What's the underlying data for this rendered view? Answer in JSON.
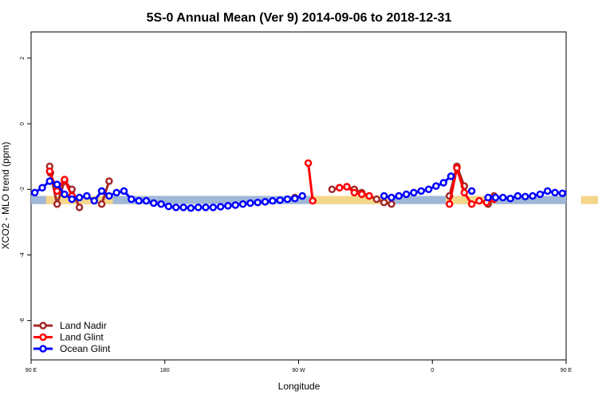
{
  "chart_data": {
    "type": "line",
    "title": "5S-0 Annual Mean (Ver 9)   2014-09-06 to 2018-12-31",
    "xlabel": "Longitude",
    "ylabel": "XCO2 - MLO trend (ppm)",
    "xlim": [
      90,
      450
    ],
    "ylim": [
      -7.2,
      2.8
    ],
    "x_ticks": [
      {
        "value": 90,
        "label": "90 E"
      },
      {
        "value": 180,
        "label": "180"
      },
      {
        "value": 270,
        "label": "90 W"
      },
      {
        "value": 360,
        "label": "0"
      },
      {
        "value": 450,
        "label": "90 E"
      },
      {
        "value": 540,
        "label": "180"
      }
    ],
    "y_ticks": [
      -6,
      -4,
      -2,
      0,
      2
    ],
    "grid": false,
    "legend_position": "bottom-left",
    "band": {
      "ymin": -2.45,
      "ymax": -2.2,
      "color": "#9fb7d6"
    },
    "yellow_segments": [
      {
        "x": [
          100,
          145
        ],
        "ymin": -2.45,
        "ymax": -2.2
      },
      {
        "x": [
          280,
          332
        ],
        "ymin": -2.45,
        "ymax": -2.2
      },
      {
        "x": [
          369,
          401
        ],
        "ymin": -2.45,
        "ymax": -2.2
      },
      {
        "x": [
          460,
          505
        ],
        "ymin": -2.45,
        "ymax": -2.2
      }
    ],
    "yellow_color": "#f5d78a",
    "series": [
      {
        "name": "Land Nadir",
        "color": "#a52a2a",
        "segments": [
          {
            "x": [
              102.5,
              103.0,
              107.5,
              112.5,
              117.5,
              122.5
            ],
            "y": [
              -1.3,
              -1.5,
              -2.45,
              -1.75,
              -2.0,
              -2.55
            ]
          },
          {
            "x": [
              137.5,
              142.5
            ],
            "y": [
              -2.45,
              -1.75
            ]
          },
          {
            "x": [
              267.5
            ],
            "y": [
              -2.25
            ]
          },
          {
            "x": [
              292.5,
              297.5,
              302.5,
              307.5,
              312.5,
              317.5,
              322.5,
              327.5,
              332.5
            ],
            "y": [
              -2.0,
              -1.95,
              -1.92,
              -2.0,
              -2.1,
              -2.2,
              -2.3,
              -2.4,
              -2.45
            ]
          },
          {
            "x": [
              371.5,
              376.5,
              381.5
            ],
            "y": [
              -2.2,
              -1.3,
              -1.9
            ]
          },
          {
            "x": [
              397.5,
              401.5
            ],
            "y": [
              -2.45,
              -2.2
            ]
          },
          {
            "x": [
              462.5,
              463.0,
              467.5,
              472.5,
              477.5,
              482.5
            ],
            "y": [
              -1.3,
              -1.5,
              -2.45,
              -1.75,
              -2.0,
              -2.55
            ]
          },
          {
            "x": [
              497.5,
              502.5
            ],
            "y": [
              -2.45,
              -1.75
            ]
          }
        ]
      },
      {
        "name": "Land Glint",
        "color": "#ff0000",
        "segments": [
          {
            "x": [
              102.5,
              107.5,
              112.5,
              117.5
            ],
            "y": [
              -1.45,
              -2.05,
              -1.7,
              -2.2
            ]
          },
          {
            "x": [
              276.5,
              279.5
            ],
            "y": [
              -1.2,
              -2.35
            ]
          },
          {
            "x": [
              297.5,
              302.5,
              307.5,
              312.5,
              317.5
            ],
            "y": [
              -1.95,
              -1.92,
              -2.1,
              -2.15,
              -2.2
            ]
          },
          {
            "x": [
              371.5,
              376.5,
              381.5,
              386.5,
              391.5,
              396.5,
              401.5
            ],
            "y": [
              -2.45,
              -1.35,
              -2.1,
              -2.45,
              -2.35,
              -2.4,
              -2.3
            ]
          },
          {
            "x": [
              462.5,
              467.5,
              472.5,
              477.5
            ],
            "y": [
              -1.45,
              -2.05,
              -1.7,
              -2.2
            ]
          }
        ]
      },
      {
        "name": "Ocean Glint",
        "color": "#0000ff",
        "segments": [
          {
            "x": [
              92.5,
              97.5,
              102.5,
              107.5,
              112.5,
              117.5,
              122.5,
              127.5,
              132.5,
              137.5,
              142.5,
              147.5,
              152.5,
              157.5,
              162.5,
              167.5,
              172.5,
              177.5,
              182.5,
              187.5,
              192.5,
              197.5,
              202.5,
              207.5,
              212.5,
              217.5,
              222.5,
              227.5,
              232.5,
              237.5,
              242.5,
              247.5,
              252.5,
              257.5,
              262.5,
              267.5,
              272.5
            ],
            "y": [
              -2.1,
              -1.95,
              -1.75,
              -1.85,
              -2.15,
              -2.3,
              -2.25,
              -2.2,
              -2.35,
              -2.05,
              -2.2,
              -2.1,
              -2.05,
              -2.3,
              -2.35,
              -2.35,
              -2.42,
              -2.45,
              -2.52,
              -2.55,
              -2.55,
              -2.57,
              -2.55,
              -2.55,
              -2.55,
              -2.53,
              -2.5,
              -2.48,
              -2.45,
              -2.42,
              -2.4,
              -2.38,
              -2.35,
              -2.33,
              -2.3,
              -2.28,
              -2.2
            ]
          },
          {
            "x": [
              327.5,
              332.5,
              337.5,
              342.5,
              347.5,
              352.5,
              357.5,
              362.5,
              367.5,
              372.5
            ],
            "y": [
              -2.2,
              -2.25,
              -2.2,
              -2.15,
              -2.1,
              -2.05,
              -2.0,
              -1.9,
              -1.8,
              -1.6
            ]
          },
          {
            "x": [
              386.5
            ],
            "y": [
              -2.05
            ]
          },
          {
            "x": [
              397.5,
              402.5,
              407.5,
              412.5,
              417.5,
              422.5,
              427.5,
              432.5,
              437.5,
              442.5,
              447.5,
              452.5,
              457.5,
              462.5,
              467.5,
              472.5,
              477.5,
              482.5,
              487.5,
              492.5,
              497.5,
              502.5,
              507.5,
              512.5,
              517.5,
              522.5,
              527.5,
              532.5,
              537.5
            ],
            "y": [
              -2.25,
              -2.25,
              -2.25,
              -2.28,
              -2.2,
              -2.22,
              -2.2,
              -2.15,
              -2.05,
              -2.1,
              -2.12,
              -2.0,
              -1.75,
              -1.9,
              -2.15,
              -2.3,
              -2.2,
              -2.15,
              -2.3,
              -2.05,
              -2.2,
              -2.15,
              -2.05,
              -2.25,
              -2.3,
              -2.3,
              -2.35,
              -2.42,
              -2.45
            ]
          }
        ]
      }
    ]
  }
}
